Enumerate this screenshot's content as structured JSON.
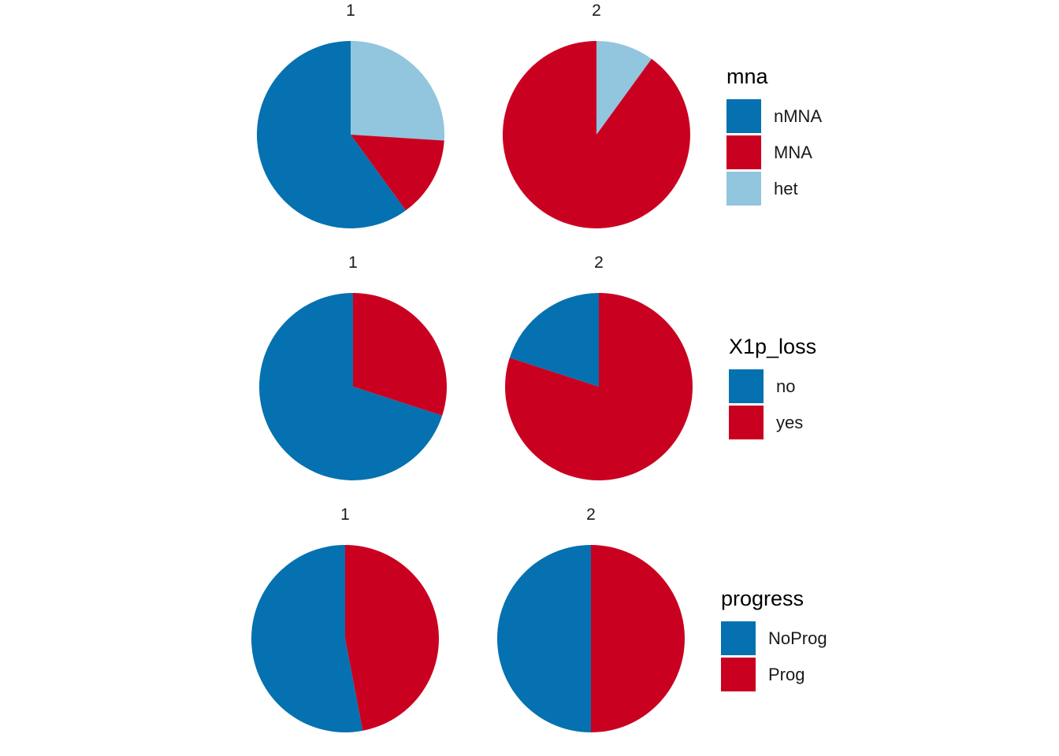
{
  "chart_data": [
    {
      "type": "pie",
      "legend_title": "mna",
      "legend_position": "right",
      "categories": [
        "nMNA",
        "MNA",
        "het"
      ],
      "colors": {
        "nMNA": "#0571b0",
        "MNA": "#ca0020",
        "het": "#92c5de"
      },
      "facets": [
        {
          "label": "1",
          "values": {
            "het": 0.26,
            "MNA": 0.14,
            "nMNA": 0.6
          }
        },
        {
          "label": "2",
          "values": {
            "het": 0.1,
            "MNA": 0.9,
            "nMNA": 0.0
          }
        }
      ]
    },
    {
      "type": "pie",
      "legend_title": "X1p_loss",
      "legend_position": "right",
      "categories": [
        "no",
        "yes"
      ],
      "colors": {
        "no": "#0571b0",
        "yes": "#ca0020"
      },
      "facets": [
        {
          "label": "1",
          "values": {
            "yes": 0.3,
            "no": 0.7
          }
        },
        {
          "label": "2",
          "values": {
            "yes": 0.8,
            "no": 0.2
          }
        }
      ]
    },
    {
      "type": "pie",
      "legend_title": "progress",
      "legend_position": "right",
      "categories": [
        "NoProg",
        "Prog"
      ],
      "colors": {
        "NoProg": "#0571b0",
        "Prog": "#ca0020"
      },
      "facets": [
        {
          "label": "1",
          "values": {
            "Prog": 0.47,
            "NoProg": 0.53
          }
        },
        {
          "label": "2",
          "values": {
            "Prog": 0.5,
            "NoProg": 0.5
          }
        }
      ]
    }
  ]
}
